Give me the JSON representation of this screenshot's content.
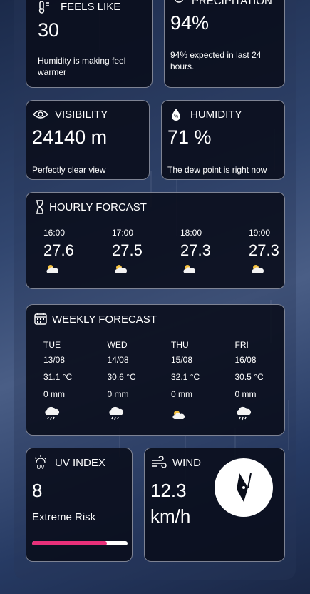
{
  "feels_like": {
    "label": "FEELS LIKE",
    "value": "30",
    "note": "Humidity is making feel warmer"
  },
  "precipitation": {
    "label": "PRECIPITATION",
    "value": "94%",
    "note": "94% expected in last 24 hours."
  },
  "visibility": {
    "label": "VISIBILITY",
    "value": "24140 m",
    "note": "Perfectly clear view"
  },
  "humidity": {
    "label": "HUMIDITY",
    "value": "71 %",
    "note": "The dew point is right now"
  },
  "hourly": {
    "title": "HOURLY FORCAST",
    "items": [
      {
        "time": "16:00",
        "temp": "27.6"
      },
      {
        "time": "17:00",
        "temp": "27.5"
      },
      {
        "time": "18:00",
        "temp": "27.3"
      },
      {
        "time": "19:00",
        "temp": "27.3"
      }
    ]
  },
  "weekly": {
    "title": "WEEKLY FORECAST",
    "days": [
      {
        "day": "TUE",
        "date": "13/08",
        "temp": "31.1 °C",
        "rain": "0 mm"
      },
      {
        "day": "WED",
        "date": "14/08",
        "temp": "30.6 °C",
        "rain": "0 mm"
      },
      {
        "day": "THU",
        "date": "15/08",
        "temp": "32.1 °C",
        "rain": "0 mm"
      },
      {
        "day": "FRI",
        "date": "16/08",
        "temp": "30.5 °C",
        "rain": "0 mm"
      }
    ]
  },
  "uv": {
    "label": "UV INDEX",
    "value": "8",
    "risk": "Extreme Risk"
  },
  "wind": {
    "label": "WIND",
    "value": "12.3",
    "unit": "km/h"
  }
}
